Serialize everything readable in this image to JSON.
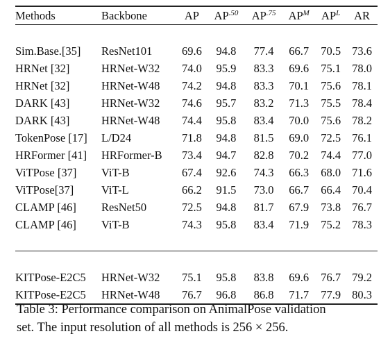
{
  "table": {
    "headers": {
      "method": "Methods",
      "backbone": "Backbone",
      "ap": "AP",
      "ap50_base": "AP",
      "ap50_sup": ".50",
      "ap75_base": "AP",
      "ap75_sup": ".75",
      "apm_base": "AP",
      "apm_sup": "M",
      "apl_base": "AP",
      "apl_sup": "L",
      "ar": "AR"
    },
    "group1": [
      {
        "method": "Sim.Base.[35]",
        "backbone": "ResNet101",
        "ap": "69.6",
        "ap50": "94.8",
        "ap75": "77.4",
        "apm": "66.7",
        "apl": "70.5",
        "ar": "73.6"
      },
      {
        "method": "HRNet [32]",
        "backbone": "HRNet-W32",
        "ap": "74.0",
        "ap50": "95.9",
        "ap75": "83.3",
        "apm": "69.6",
        "apl": "75.1",
        "ar": "78.0"
      },
      {
        "method": "HRNet [32]",
        "backbone": "HRNet-W48",
        "ap": "74.2",
        "ap50": "94.8",
        "ap75": "83.3",
        "apm": "70.1",
        "apl": "75.6",
        "ar": "78.1"
      },
      {
        "method": "DARK [43]",
        "backbone": "HRNet-W32",
        "ap": "74.6",
        "ap50": "95.7",
        "ap75": "83.2",
        "apm": "71.3",
        "apl": "75.5",
        "ar": "78.4"
      },
      {
        "method": "DARK [43]",
        "backbone": "HRNet-W48",
        "ap": "74.4",
        "ap50": "95.8",
        "ap75": "83.4",
        "apm": "70.0",
        "apl": "75.6",
        "ar": "78.2"
      },
      {
        "method": "TokenPose [17]",
        "backbone": "L/D24",
        "ap": "71.8",
        "ap50": "94.8",
        "ap75": "81.5",
        "apm": "69.0",
        "apl": "72.5",
        "ar": "76.1"
      },
      {
        "method": "HRFormer [41]",
        "backbone": "HRFormer-B",
        "ap": "73.4",
        "ap50": "94.7",
        "ap75": "82.8",
        "apm": "70.2",
        "apl": "74.4",
        "ar": "77.0"
      },
      {
        "method": "ViTPose [37]",
        "backbone": "ViT-B",
        "ap": "67.4",
        "ap50": "92.6",
        "ap75": "74.3",
        "apm": "66.3",
        "apl": "68.0",
        "ar": "71.6"
      },
      {
        "method": "ViTPose[37]",
        "backbone": "ViT-L",
        "ap": "66.2",
        "ap50": "91.5",
        "ap75": "73.0",
        "apm": "66.7",
        "apl": "66.4",
        "ar": "70.4"
      },
      {
        "method": "CLAMP [46]",
        "backbone": "ResNet50",
        "ap": "72.5",
        "ap50": "94.8",
        "ap75": "81.7",
        "apm": "67.9",
        "apl": "73.8",
        "ar": "76.7"
      },
      {
        "method": "CLAMP [46]",
        "backbone": "ViT-B",
        "ap": "74.3",
        "ap50": "95.8",
        "ap75": "83.4",
        "apm": "71.9",
        "apl": "75.2",
        "ar": "78.3"
      }
    ],
    "group2": [
      {
        "method": "KITPose-E2C5",
        "backbone": "HRNet-W32",
        "ap": "75.1",
        "ap50": "95.8",
        "ap75": "83.8",
        "apm": "69.6",
        "apl": "76.7",
        "ar": "79.2"
      },
      {
        "method": "KITPose-E2C5",
        "backbone": "HRNet-W48",
        "ap": "76.7",
        "ap50": "96.8",
        "ap75": "86.8",
        "apm": "71.7",
        "apl": "77.9",
        "ar": "80.3"
      }
    ]
  },
  "caption": {
    "line1": "Table 3: Performance comparison on AnimalPose validation",
    "line2": "set. The input resolution of all methods is 256 × 256."
  }
}
